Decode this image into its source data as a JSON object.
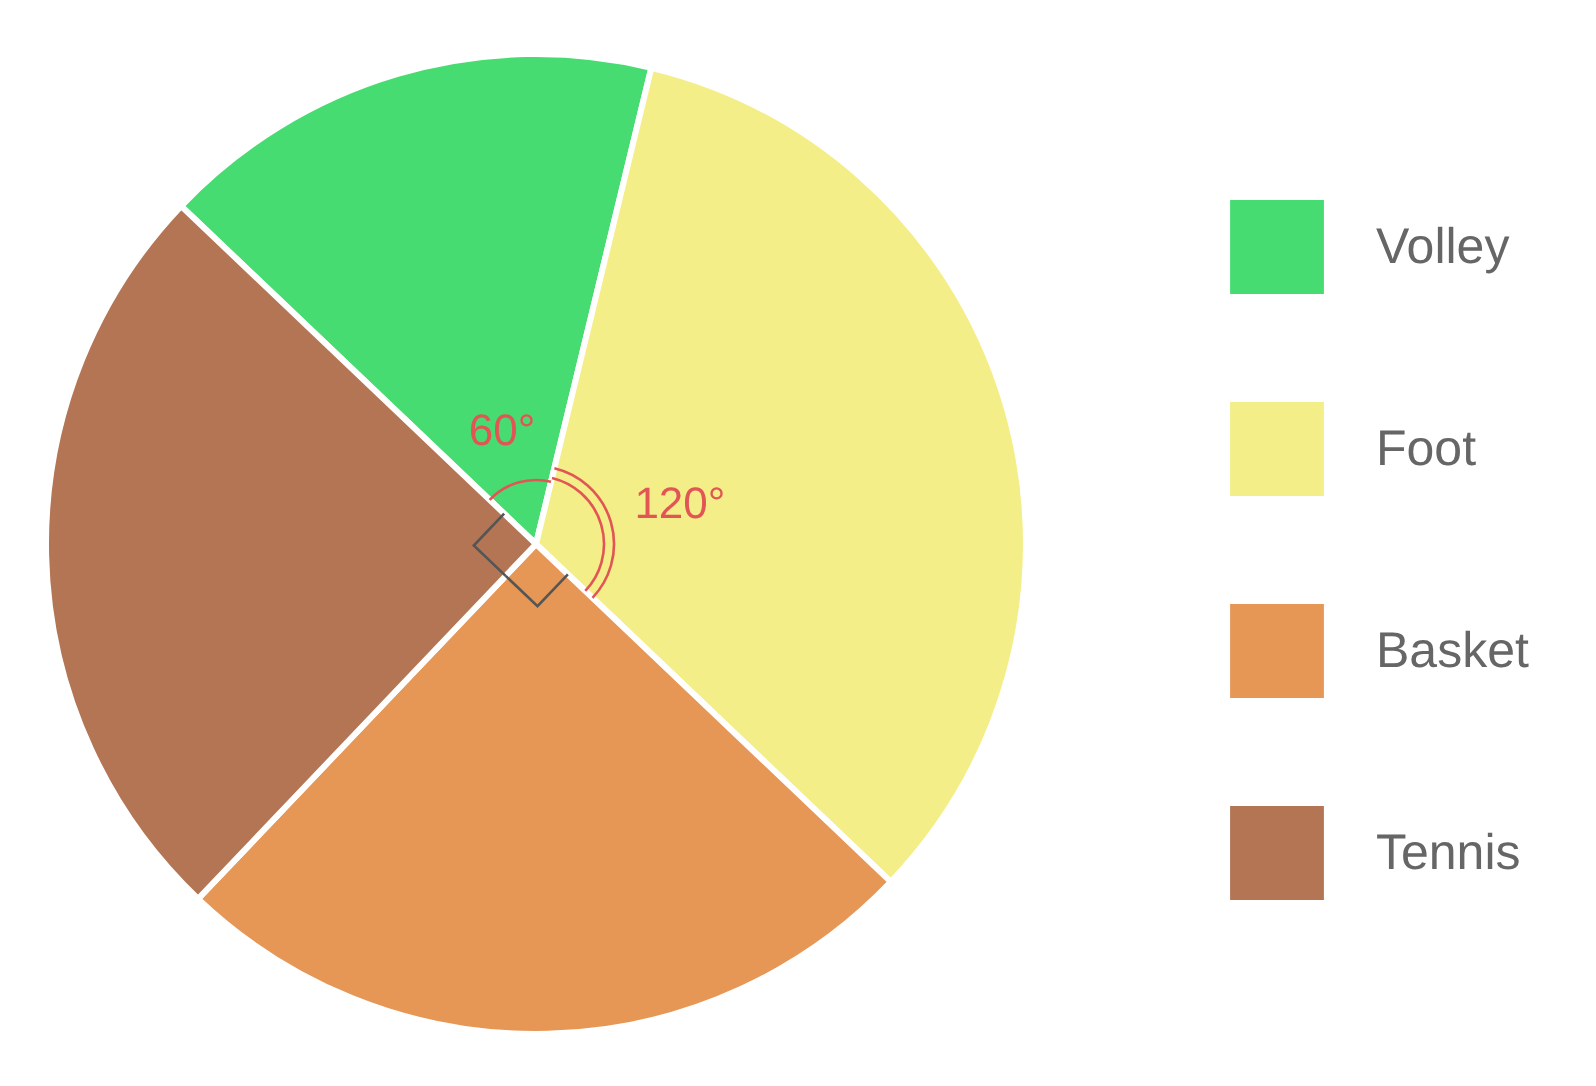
{
  "chart_data": {
    "type": "pie",
    "categories": [
      "Volley",
      "Foot",
      "Basket",
      "Tennis"
    ],
    "values": [
      16.67,
      33.33,
      25,
      25
    ],
    "colors": [
      "#47dc72",
      "#f4ee88",
      "#e69655",
      "#b37554"
    ],
    "annotations": [
      "60°",
      "120°"
    ],
    "legend": "right"
  }
}
